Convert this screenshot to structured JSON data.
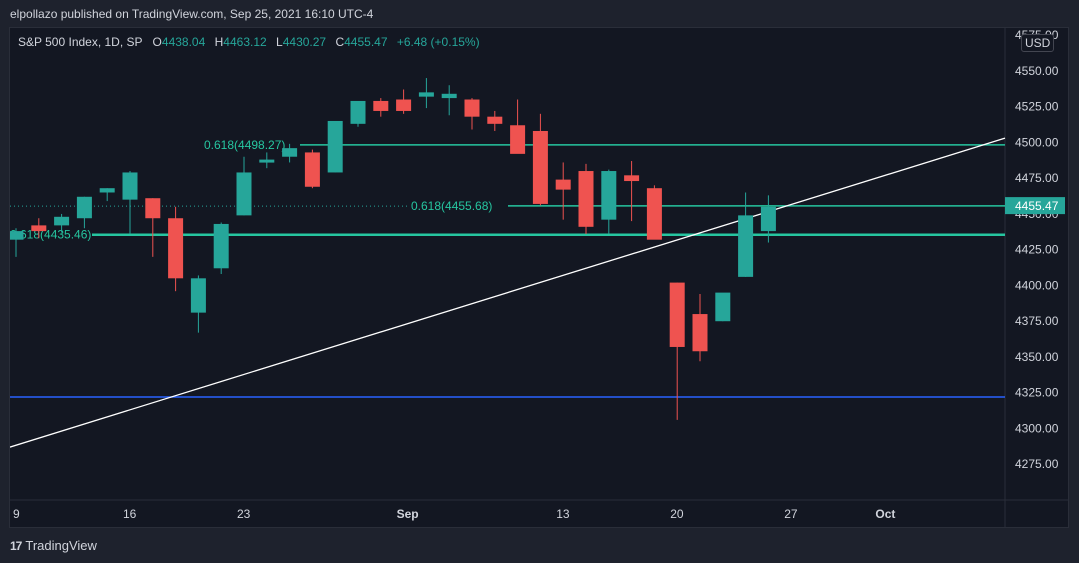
{
  "header": {
    "caption": "elpollazo published on TradingView.com, Sep 25, 2021 16:10 UTC-4"
  },
  "legend": {
    "symbol": "S&P 500 Index, 1D, SP",
    "o_label": "O",
    "o_value": "4438.04",
    "h_label": "H",
    "h_value": "4463.12",
    "l_label": "L",
    "l_value": "4430.27",
    "c_label": "C",
    "c_value": "4455.47",
    "change": "+6.48 (+0.15%)"
  },
  "currency_button": "USD",
  "footer": {
    "brand_mark": "17",
    "brand_name": "TradingView"
  },
  "colors": {
    "background": "#131722",
    "up": "#26a69a",
    "down": "#ef5350",
    "fib_line": "#26c6a0",
    "trend_line": "#ffffff",
    "support_line": "#2962ff",
    "price_tag": "#26a69a"
  },
  "chart_data": {
    "type": "candlestick",
    "title": "S&P 500 Index, 1D, SP",
    "ylim": [
      4250,
      4580
    ],
    "yticks": [
      4275,
      4300,
      4325,
      4350,
      4375,
      4400,
      4425,
      4450,
      4475,
      4500,
      4525,
      4550,
      4575
    ],
    "ytick_labels": [
      "4275.00",
      "4300.00",
      "4325.00",
      "4350.00",
      "4375.00",
      "4400.00",
      "4425.00",
      "4450.00",
      "4475.00",
      "4500.00",
      "4525.00",
      "4550.00",
      "4575.00"
    ],
    "xticks": [
      {
        "label": "9",
        "slot": 0
      },
      {
        "label": "16",
        "slot": 5
      },
      {
        "label": "23",
        "slot": 10
      },
      {
        "label": "Sep",
        "slot": 17
      },
      {
        "label": "13",
        "slot": 24
      },
      {
        "label": "20",
        "slot": 29
      },
      {
        "label": "27",
        "slot": 34
      },
      {
        "label": "Oct",
        "slot": 38
      }
    ],
    "candles": [
      {
        "o": 4432,
        "h": 4440,
        "l": 4420,
        "c": 4438
      },
      {
        "o": 4442,
        "h": 4447,
        "l": 4433,
        "c": 4438
      },
      {
        "o": 4442,
        "h": 4450,
        "l": 4437,
        "c": 4448
      },
      {
        "o": 4447,
        "h": 4462,
        "l": 4440,
        "c": 4462
      },
      {
        "o": 4465,
        "h": 4468,
        "l": 4459,
        "c": 4468
      },
      {
        "o": 4460,
        "h": 4480,
        "l": 4436,
        "c": 4479
      },
      {
        "o": 4461,
        "h": 4461,
        "l": 4420,
        "c": 4447
      },
      {
        "o": 4447,
        "h": 4455,
        "l": 4396,
        "c": 4405
      },
      {
        "o": 4381,
        "h": 4407,
        "l": 4367,
        "c": 4405
      },
      {
        "o": 4412,
        "h": 4444,
        "l": 4408,
        "c": 4443
      },
      {
        "o": 4449,
        "h": 4490,
        "l": 4449,
        "c": 4479
      },
      {
        "o": 4486,
        "h": 4493,
        "l": 4482,
        "c": 4488
      },
      {
        "o": 4490,
        "h": 4499,
        "l": 4486,
        "c": 4496
      },
      {
        "o": 4493,
        "h": 4495,
        "l": 4468,
        "c": 4469
      },
      {
        "o": 4479,
        "h": 4513,
        "l": 4479,
        "c": 4515
      },
      {
        "o": 4513,
        "h": 4529,
        "l": 4511,
        "c": 4529
      },
      {
        "o": 4529,
        "h": 4531,
        "l": 4518,
        "c": 4522
      },
      {
        "o": 4530,
        "h": 4537,
        "l": 4520,
        "c": 4522
      },
      {
        "o": 4532,
        "h": 4545,
        "l": 4524,
        "c": 4535
      },
      {
        "o": 4531,
        "h": 4540,
        "l": 4519,
        "c": 4534
      },
      {
        "o": 4530,
        "h": 4531,
        "l": 4509,
        "c": 4518
      },
      {
        "o": 4518,
        "h": 4522,
        "l": 4508,
        "c": 4513
      },
      {
        "o": 4512,
        "h": 4530,
        "l": 4494,
        "c": 4492
      },
      {
        "o": 4508,
        "h": 4520,
        "l": 4456,
        "c": 4457
      },
      {
        "o": 4474,
        "h": 4486,
        "l": 4446,
        "c": 4467
      },
      {
        "o": 4480,
        "h": 4485,
        "l": 4436,
        "c": 4441
      },
      {
        "o": 4446,
        "h": 4481,
        "l": 4436,
        "c": 4480
      },
      {
        "o": 4477,
        "h": 4487,
        "l": 4445,
        "c": 4473
      },
      {
        "o": 4468,
        "h": 4470,
        "l": 4433,
        "c": 4432
      },
      {
        "o": 4402,
        "h": 4402,
        "l": 4306,
        "c": 4357
      },
      {
        "o": 4380,
        "h": 4394,
        "l": 4347,
        "c": 4354
      },
      {
        "o": 4375,
        "h": 4394,
        "l": 4375,
        "c": 4395
      },
      {
        "o": 4406,
        "h": 4465,
        "l": 4406,
        "c": 4449
      },
      {
        "o": 4438,
        "h": 4463,
        "l": 4430,
        "c": 4455
      }
    ],
    "horizontal_lines": [
      {
        "name": "fib-upper",
        "value": 4498.27,
        "label": "0.618(4498.27)"
      },
      {
        "name": "fib-middle",
        "value": 4455.68,
        "label": "0.618(4455.68)"
      },
      {
        "name": "fib-lower",
        "value": 4435.46,
        "label": "0.618(4435.46)"
      },
      {
        "name": "support",
        "value": 4322
      }
    ],
    "trendline": {
      "from_value": 4287,
      "to_value": 4503
    },
    "last_price": {
      "value": 4455.47,
      "label": "4455.47"
    }
  }
}
